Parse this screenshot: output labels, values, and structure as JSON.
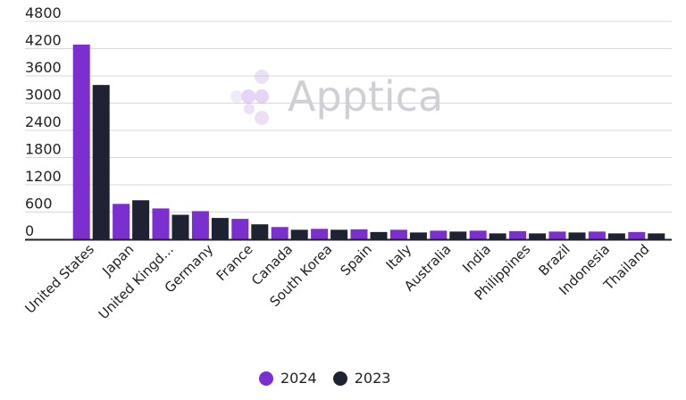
{
  "watermark": "Apptica",
  "colors": {
    "y2024": "#7b2fce",
    "y2023": "#1f2233",
    "grid": "#d8d8d8",
    "axis": "#222222"
  },
  "legend": [
    {
      "label": "2024",
      "color": "#7b2fce"
    },
    {
      "label": "2023",
      "color": "#1f2233"
    }
  ],
  "chart_data": {
    "type": "bar",
    "categories": [
      "United States",
      "Japan",
      "United Kingd...",
      "Germany",
      "France",
      "Canada",
      "South Korea",
      "Spain",
      "Italy",
      "Australia",
      "India",
      "Philippines",
      "Brazil",
      "Indonesia",
      "Thailand"
    ],
    "series": [
      {
        "name": "2024",
        "values": [
          4290,
          780,
          680,
          620,
          450,
          270,
          230,
          220,
          210,
          190,
          190,
          180,
          170,
          170,
          160
        ]
      },
      {
        "name": "2023",
        "values": [
          3400,
          860,
          540,
          470,
          330,
          210,
          210,
          160,
          150,
          170,
          130,
          130,
          150,
          130,
          130
        ]
      }
    ],
    "yticks": [
      "4800",
      "4200",
      "3600",
      "3000",
      "2400",
      "1800",
      "1200",
      "600",
      "0"
    ],
    "ylim": [
      0,
      4800
    ],
    "grid": true,
    "legend_position": "bottom-center"
  }
}
